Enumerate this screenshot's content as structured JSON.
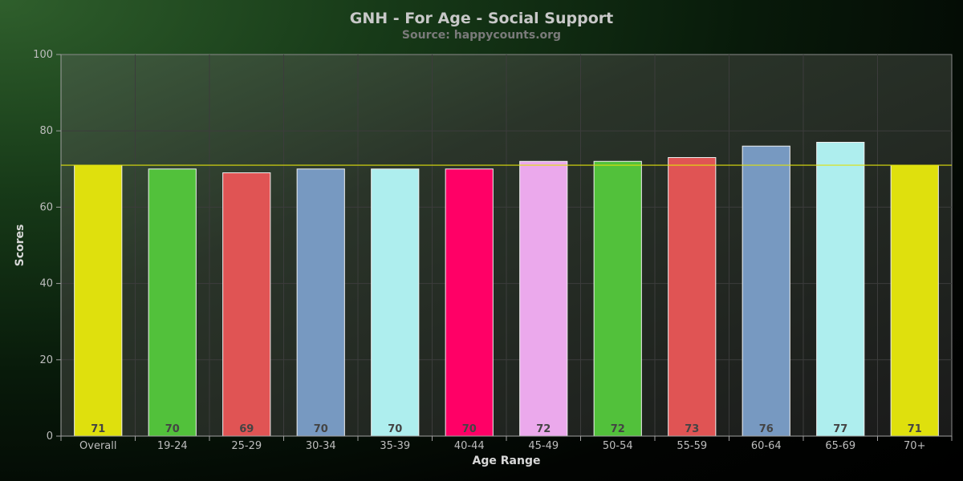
{
  "chart_data": {
    "type": "bar",
    "title": "GNH - For Age - Social Support",
    "subtitle": "Source: happycounts.org",
    "xlabel": "Age Range",
    "ylabel": "Scores",
    "ylim": [
      0,
      100
    ],
    "yticks": [
      "0",
      "20",
      "40",
      "60",
      "80",
      "100"
    ],
    "categories": [
      "Overall",
      "19-24",
      "25-29",
      "30-34",
      "35-39",
      "40-44",
      "45-49",
      "50-54",
      "55-59",
      "60-64",
      "65-69",
      "70+"
    ],
    "values": [
      71,
      70,
      69,
      70,
      70,
      70,
      72,
      72,
      73,
      76,
      77,
      71
    ],
    "value_labels": [
      "71",
      "70",
      "69",
      "70",
      "70",
      "70",
      "72",
      "72",
      "73",
      "76",
      "77",
      "71"
    ],
    "colors": [
      "#dfe00d",
      "#52c13b",
      "#e05454",
      "#7799c1",
      "#aeeeee",
      "#ff0066",
      "#eba9ec",
      "#52c13b",
      "#e05454",
      "#7799c1",
      "#aeeeee",
      "#dfe00d"
    ],
    "reference_line": {
      "value": 71,
      "color": "#dfe00d"
    },
    "grid": true,
    "legend": "none"
  }
}
